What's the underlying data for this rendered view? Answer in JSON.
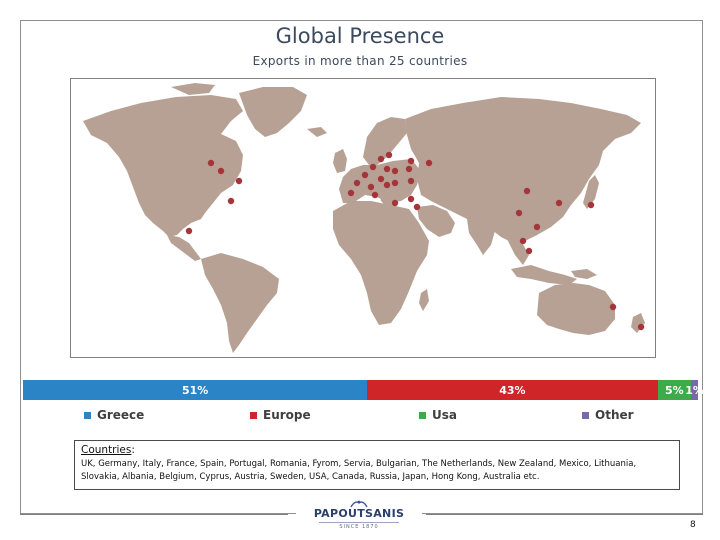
{
  "title": "Global Presence",
  "subtitle": "Exports in more than 25 countries",
  "colors": {
    "land": "#b7a195",
    "marker": "#a5353a",
    "greece": "#2a84c6",
    "europe": "#cf2528",
    "usa": "#3dab49",
    "other": "#7a68ad"
  },
  "shares": [
    {
      "id": "greece",
      "label": "51%",
      "value": 51,
      "color": "#2a84c6"
    },
    {
      "id": "europe",
      "label": "43%",
      "value": 43,
      "color": "#cf2528"
    },
    {
      "id": "usa",
      "label": "5%",
      "value": 5,
      "color": "#3dab49"
    },
    {
      "id": "other",
      "label": "1%",
      "value": 1,
      "color": "#7a68ad"
    }
  ],
  "legend": [
    {
      "id": "greece",
      "label": "Greece",
      "color": "#2a84c6"
    },
    {
      "id": "europe",
      "label": "Europe",
      "color": "#cf2528"
    },
    {
      "id": "usa",
      "label": "Usa",
      "color": "#3dab49"
    },
    {
      "id": "other",
      "label": "Other",
      "color": "#7a68ad"
    }
  ],
  "countries": {
    "heading": "Countries",
    "colon": ":",
    "text": "UK, Germany, Italy, France, Spain, Portugal, Romania, Fyrom, Servia, Bulgarian, The Netherlands, New Zealand, Mexico, Lithuania, Slovakia, Albania, Belgium, Cyprus, Austria, Sweden, USA, Canada, Russia, Japan, Hong Kong, Australia etc."
  },
  "logo": {
    "name": "PAPOUTSANIS",
    "since": "SINCE 1870"
  },
  "page_number": "8"
}
